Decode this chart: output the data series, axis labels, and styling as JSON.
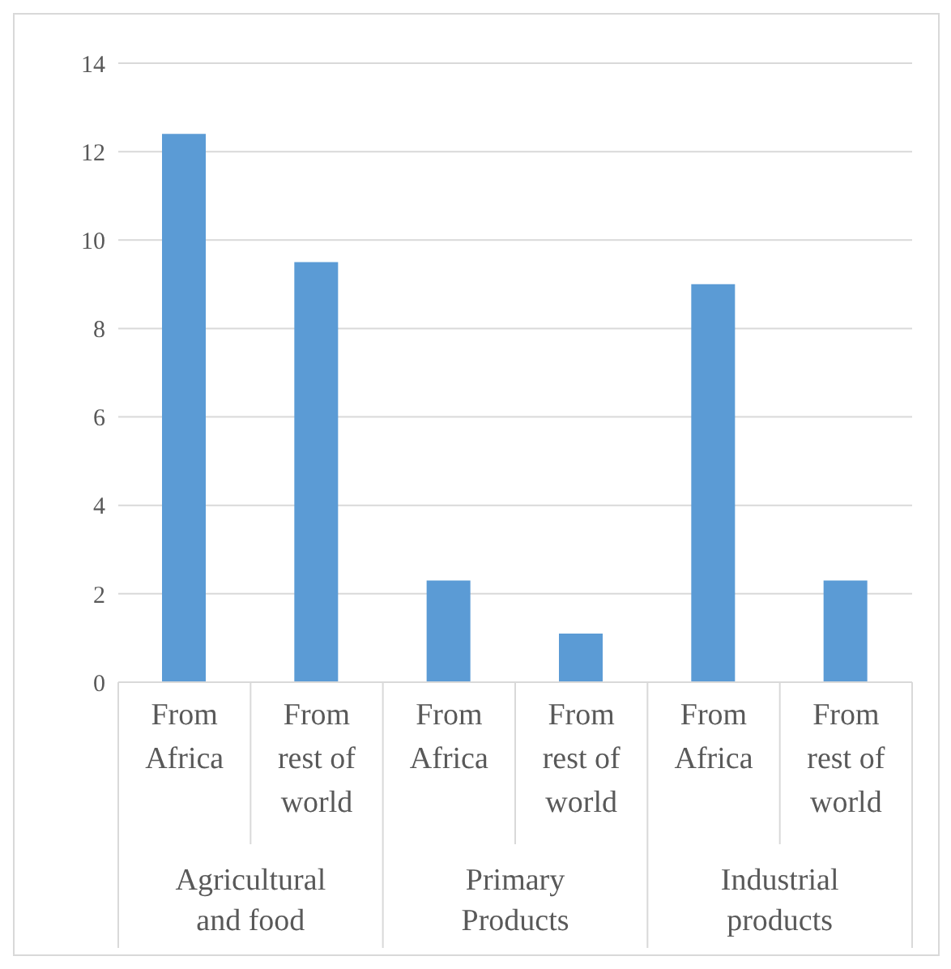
{
  "chart_data": {
    "type": "bar",
    "categories": [
      "From Africa",
      "From rest of world",
      "From Africa",
      "From rest of world",
      "From Africa",
      "From rest of world"
    ],
    "values": [
      12.4,
      9.5,
      2.3,
      1.1,
      9.0,
      2.3
    ],
    "color": "#5b9bd5",
    "ylim": [
      0,
      14
    ],
    "yticks": [
      0,
      2,
      4,
      6,
      8,
      10,
      12,
      14
    ],
    "grid": "y",
    "legend": false,
    "annotations": [
      "Agricultural and food",
      "Primary Products",
      "Industrial products"
    ]
  }
}
